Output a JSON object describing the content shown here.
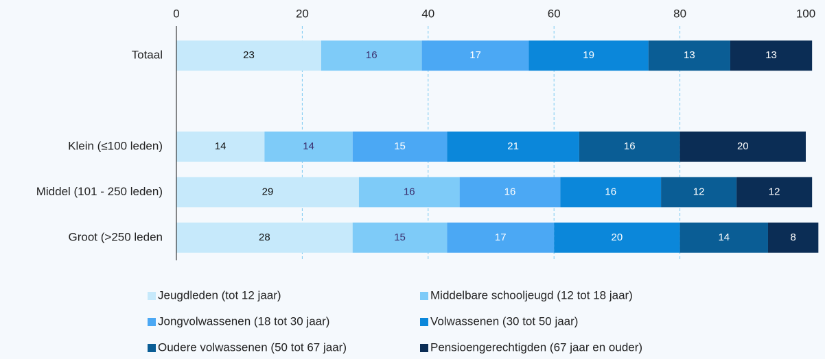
{
  "chart_data": {
    "type": "stacked_bar_horizontal",
    "categories": [
      "Totaal",
      null,
      "Klein (≤100 leden)",
      "Middel (101 - 250 leden)",
      "Groot (>250 leden"
    ],
    "series": [
      {
        "name": "Jeugdleden (tot 12 jaar)",
        "color": "#c6e9fb",
        "values": [
          23,
          null,
          14,
          29,
          28
        ]
      },
      {
        "name": "Middelbare schooljeugd (12 tot 18 jaar)",
        "color": "#7ecbf8",
        "values": [
          16,
          null,
          14,
          16,
          15
        ]
      },
      {
        "name": "Jongvolwassenen (18 tot 30 jaar)",
        "color": "#4ba8f4",
        "values": [
          17,
          null,
          15,
          16,
          17
        ]
      },
      {
        "name": "Volwassenen (30 tot 50 jaar)",
        "color": "#0b87da",
        "values": [
          19,
          null,
          21,
          16,
          20
        ]
      },
      {
        "name": "Oudere volwassenen (50 tot 67 jaar)",
        "color": "#0a5d95",
        "values": [
          13,
          null,
          16,
          12,
          14
        ]
      },
      {
        "name": "Pensioengerechtigden (67 jaar en ouder)",
        "color": "#0b2d55",
        "values": [
          13,
          null,
          20,
          12,
          8
        ]
      }
    ],
    "xlim": [
      0,
      100
    ],
    "xticks": [
      0,
      20,
      40,
      60,
      80,
      100
    ],
    "grid": true,
    "legend": "bottom"
  }
}
